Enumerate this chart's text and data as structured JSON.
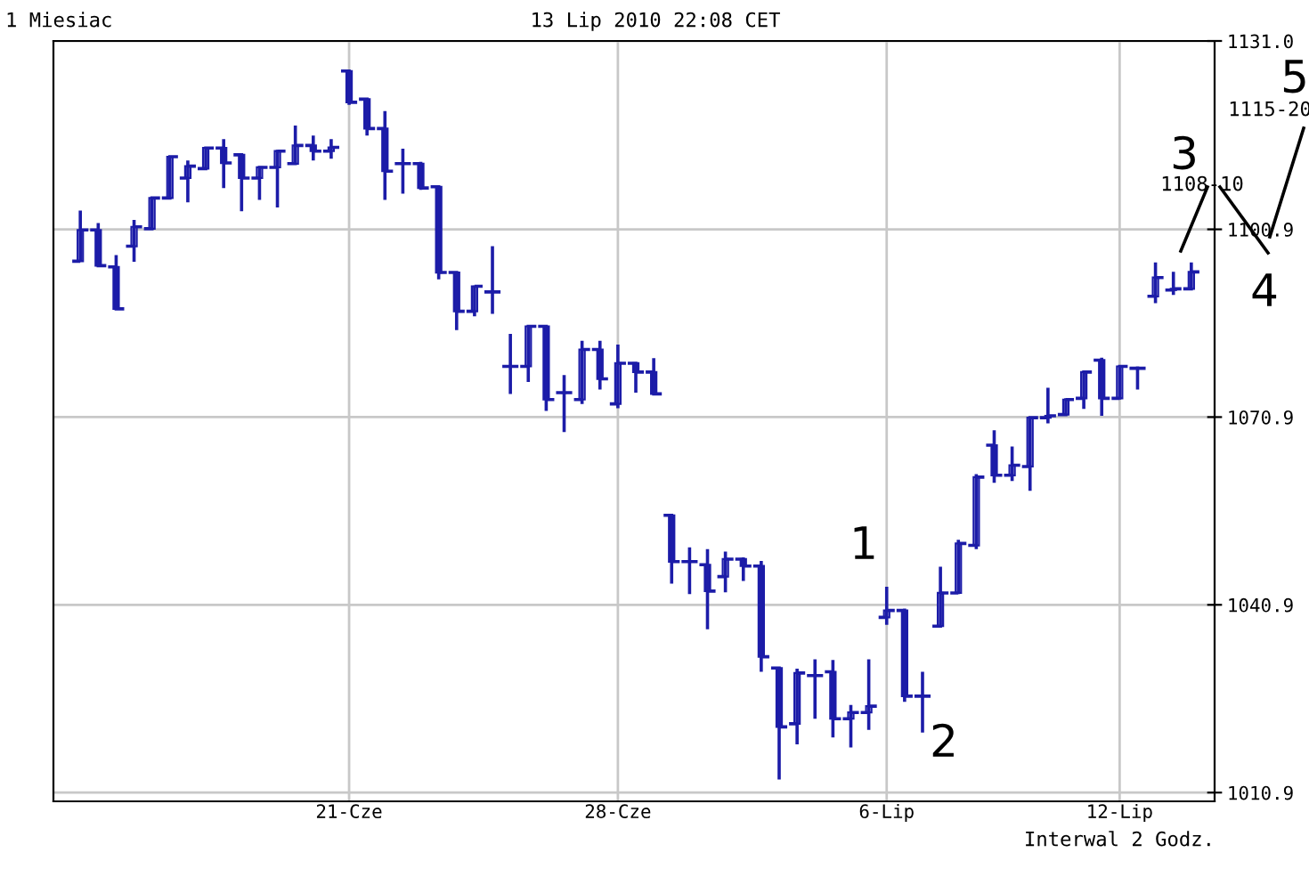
{
  "chart_data": {
    "type": "candlestick",
    "title": "1 Miesiac",
    "subtitle": "13 Lip 2010 22:08 CET",
    "annotations": [
      "Interwal 2 Godz.",
      "1",
      "2",
      "3",
      "4",
      "5",
      "1108-10",
      "1115-20"
    ],
    "categories": [
      null,
      null,
      null,
      null,
      null,
      null,
      null,
      null,
      null,
      null,
      null,
      null,
      null,
      null,
      null,
      "21-Cze",
      null,
      null,
      null,
      null,
      null,
      null,
      null,
      null,
      null,
      null,
      null,
      null,
      null,
      null,
      "28-Cze",
      null,
      null,
      null,
      null,
      null,
      null,
      null,
      null,
      null,
      null,
      null,
      null,
      null,
      null,
      "6-Lip",
      null,
      null,
      null,
      null,
      null,
      null,
      null,
      null,
      null,
      null,
      null,
      null,
      "12-Lip",
      null,
      null,
      null,
      null
    ],
    "ohlc": [
      [
        1095.8,
        1103.9,
        1095.7,
        1100.8
      ],
      [
        1100.8,
        1101.9,
        1095.1,
        1095.1
      ],
      [
        1094.9,
        1096.8,
        1088.2,
        1088.2
      ],
      [
        1098.2,
        1102.4,
        1095.7,
        1101.3
      ],
      [
        1101.0,
        1105.9,
        1101.0,
        1105.9
      ],
      [
        1105.9,
        1112.5,
        1105.9,
        1112.5
      ],
      [
        1109.1,
        1111.9,
        1105.2,
        1111.0
      ],
      [
        1110.6,
        1113.9,
        1110.6,
        1113.9
      ],
      [
        1113.9,
        1115.3,
        1107.5,
        1111.5
      ],
      [
        1112.8,
        1112.8,
        1103.8,
        1109.1
      ],
      [
        1109.1,
        1110.8,
        1105.6,
        1110.8
      ],
      [
        1110.8,
        1113.6,
        1104.4,
        1113.4
      ],
      [
        1111.4,
        1117.5,
        1111.4,
        1114.3
      ],
      [
        1114.3,
        1115.9,
        1111.9,
        1113.4
      ],
      [
        1113.4,
        1115.3,
        1112.2,
        1114.0
      ],
      [
        1126.2,
        1126.2,
        1120.8,
        1121.2
      ],
      [
        1121.7,
        1121.7,
        1115.9,
        1117.0
      ],
      [
        1117.0,
        1119.8,
        1105.6,
        1110.2
      ],
      [
        1111.4,
        1113.8,
        1106.6,
        1111.4
      ],
      [
        1111.4,
        1111.7,
        1107.2,
        1107.5
      ],
      [
        1107.7,
        1107.7,
        1092.9,
        1094.0
      ],
      [
        1094.0,
        1094.0,
        1084.8,
        1087.8
      ],
      [
        1087.8,
        1091.9,
        1087.0,
        1091.8
      ],
      [
        1090.9,
        1098.2,
        1087.4,
        1090.9
      ],
      [
        1079.0,
        1084.2,
        1074.6,
        1079.0
      ],
      [
        1079.0,
        1085.4,
        1076.5,
        1085.4
      ],
      [
        1085.4,
        1085.4,
        1071.9,
        1073.7
      ],
      [
        1074.8,
        1077.6,
        1068.5,
        1074.8
      ],
      [
        1073.7,
        1083.1,
        1073.0,
        1081.7
      ],
      [
        1081.7,
        1083.1,
        1075.3,
        1077.0
      ],
      [
        1073.0,
        1082.5,
        1072.3,
        1079.5
      ],
      [
        1079.5,
        1079.7,
        1074.8,
        1078.1
      ],
      [
        1078.1,
        1080.3,
        1074.6,
        1074.6
      ],
      [
        1055.2,
        1055.2,
        1044.3,
        1047.8
      ],
      [
        1047.8,
        1050.1,
        1042.6,
        1047.8
      ],
      [
        1047.3,
        1049.8,
        1037.0,
        1043.1
      ],
      [
        1045.4,
        1049.4,
        1042.9,
        1048.2
      ],
      [
        1048.2,
        1048.5,
        1044.7,
        1047.1
      ],
      [
        1047.1,
        1047.9,
        1030.2,
        1032.6
      ],
      [
        1030.8,
        1030.8,
        1013.0,
        1021.4
      ],
      [
        1021.9,
        1030.7,
        1018.6,
        1030.0
      ],
      [
        1029.6,
        1032.2,
        1022.7,
        1029.6
      ],
      [
        1030.2,
        1032.1,
        1019.7,
        1022.7
      ],
      [
        1022.7,
        1024.9,
        1018.1,
        1023.7
      ],
      [
        1023.7,
        1032.2,
        1020.9,
        1024.7
      ],
      [
        1038.9,
        1043.8,
        1037.7,
        1040.0
      ],
      [
        1040.0,
        1040.3,
        1025.4,
        1026.3
      ],
      [
        1026.3,
        1030.2,
        1020.5,
        1026.3
      ],
      [
        1037.5,
        1047.0,
        1037.5,
        1042.8
      ],
      [
        1042.8,
        1051.3,
        1042.6,
        1050.7
      ],
      [
        1050.4,
        1061.8,
        1049.8,
        1061.3
      ],
      [
        1066.4,
        1068.8,
        1060.4,
        1061.6
      ],
      [
        1061.6,
        1066.2,
        1060.7,
        1063.2
      ],
      [
        1063.0,
        1070.8,
        1059.1,
        1070.8
      ],
      [
        1070.8,
        1075.6,
        1069.9,
        1071.1
      ],
      [
        1071.3,
        1073.9,
        1071.3,
        1073.7
      ],
      [
        1073.9,
        1078.1,
        1072.2,
        1078.1
      ],
      [
        1080.0,
        1080.4,
        1071.1,
        1073.9
      ],
      [
        1073.9,
        1079.0,
        1073.7,
        1079.0
      ],
      [
        1078.7,
        1079.0,
        1075.3,
        1078.7
      ],
      [
        1090.2,
        1095.6,
        1089.1,
        1093.2
      ],
      [
        1091.2,
        1094.1,
        1090.4,
        1091.4
      ],
      [
        1091.4,
        1095.6,
        1091.4,
        1094.1
      ]
    ],
    "color": "#1c1ca8",
    "ylim": [
      1009.5,
      1131.0
    ],
    "yticks": [
      1010.9,
      1040.9,
      1070.9,
      1100.9,
      {
        "value": 1131.0,
        "label": "1131.0"
      }
    ],
    "grid": true,
    "legend": false
  }
}
